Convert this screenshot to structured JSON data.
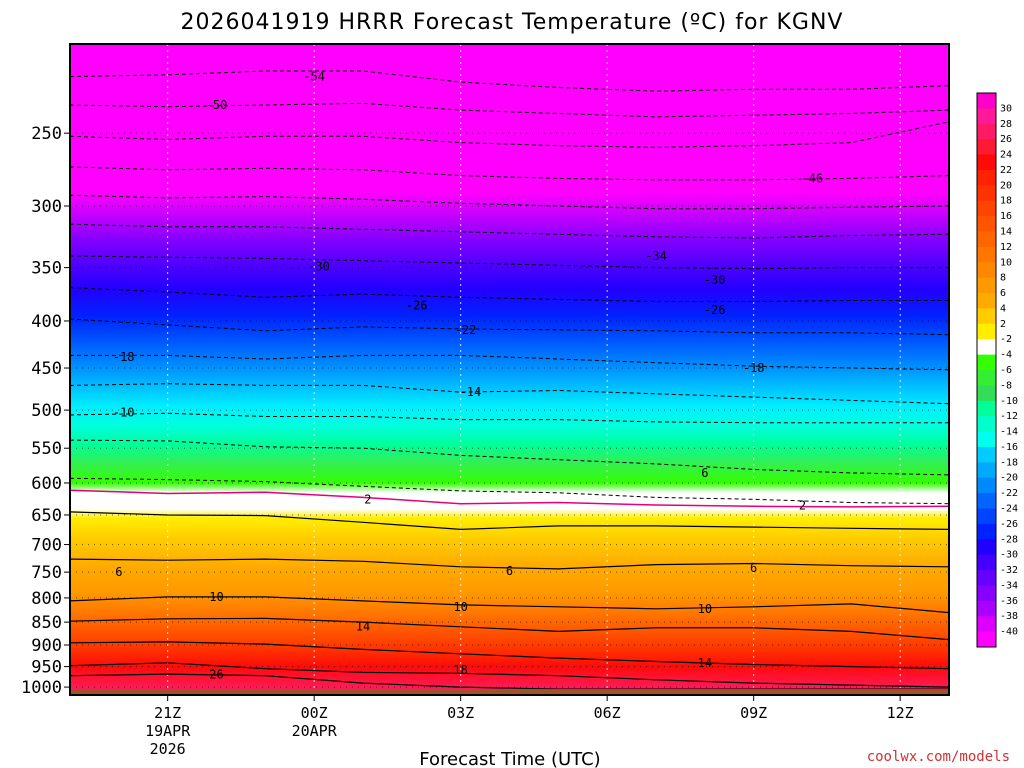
{
  "chart_data": {
    "type": "heatmap",
    "title": "2026041919 HRRR Forecast Temperature (ºC) for KGNV",
    "xlabel": "Forecast Time (UTC)",
    "credit": "coolwx.com/models",
    "x_ticks": [
      {
        "hour": 2,
        "lines": [
          "21Z",
          "19APR",
          "2026"
        ]
      },
      {
        "hour": 5,
        "lines": [
          "00Z",
          "20APR"
        ]
      },
      {
        "hour": 8,
        "lines": [
          "03Z"
        ]
      },
      {
        "hour": 11,
        "lines": [
          "06Z"
        ]
      },
      {
        "hour": 14,
        "lines": [
          "09Z"
        ]
      },
      {
        "hour": 17,
        "lines": [
          "12Z"
        ]
      }
    ],
    "xlim": [
      0,
      18
    ],
    "y_ticks": [
      250,
      300,
      350,
      400,
      450,
      500,
      550,
      600,
      650,
      700,
      750,
      800,
      850,
      900,
      950,
      1000
    ],
    "ylim_pressure_hpa": [
      200,
      1020
    ],
    "ground_pressure_hpa": 1005,
    "colorbar_labels": [
      30,
      28,
      26,
      24,
      22,
      20,
      18,
      16,
      14,
      12,
      10,
      8,
      6,
      4,
      2,
      -2,
      -4,
      -6,
      -8,
      -10,
      -12,
      -14,
      -16,
      -18,
      -20,
      -22,
      -24,
      -26,
      -28,
      -30,
      -32,
      -34,
      -36,
      -38,
      -40
    ],
    "colorbar_colors": [
      "#ff00cc",
      "#ff1a99",
      "#ff1a66",
      "#ff1a33",
      "#ff0a0a",
      "#ff2200",
      "#ff3300",
      "#ff4400",
      "#ff5500",
      "#ff6600",
      "#ff7700",
      "#ff8800",
      "#ff9900",
      "#ffaa00",
      "#ffcc00",
      "#ffee00",
      "#ffffff",
      "#33ff00",
      "#33ee33",
      "#33dd55",
      "#00ff99",
      "#00ffcc",
      "#00ffee",
      "#00ccff",
      "#00aaff",
      "#0088ff",
      "#0066ff",
      "#0044ff",
      "#0022ff",
      "#2200ff",
      "#4400ff",
      "#6600ff",
      "#8800ff",
      "#aa00ff",
      "#dd00ff",
      "#ff00ff"
    ],
    "contour_labels": [
      {
        "value": "-54",
        "hour": 5.0,
        "pressure": 217
      },
      {
        "value": "-50",
        "hour": 3.0,
        "pressure": 233
      },
      {
        "value": "-46",
        "hour": 15.2,
        "pressure": 280
      },
      {
        "value": "-34",
        "hour": 12.0,
        "pressure": 340
      },
      {
        "value": "-30",
        "hour": 5.1,
        "pressure": 349
      },
      {
        "value": "-30",
        "hour": 13.2,
        "pressure": 361
      },
      {
        "value": "-26",
        "hour": 7.1,
        "pressure": 385
      },
      {
        "value": "-26",
        "hour": 13.2,
        "pressure": 389
      },
      {
        "value": "-22",
        "hour": 8.1,
        "pressure": 409
      },
      {
        "value": "-18",
        "hour": 1.1,
        "pressure": 438
      },
      {
        "value": "-18",
        "hour": 14.0,
        "pressure": 450
      },
      {
        "value": "-14",
        "hour": 8.2,
        "pressure": 478
      },
      {
        "value": "-10",
        "hour": 1.1,
        "pressure": 503
      },
      {
        "value": "6",
        "hour": 13.0,
        "pressure": 585
      },
      {
        "value": "2",
        "hour": 6.1,
        "pressure": 625
      },
      {
        "value": "2",
        "hour": 15.0,
        "pressure": 635
      },
      {
        "value": "6",
        "hour": 1.0,
        "pressure": 750
      },
      {
        "value": "6",
        "hour": 9.0,
        "pressure": 748
      },
      {
        "value": "6",
        "hour": 14.0,
        "pressure": 742
      },
      {
        "value": "10",
        "hour": 3.0,
        "pressure": 798
      },
      {
        "value": "10",
        "hour": 8.0,
        "pressure": 818
      },
      {
        "value": "10",
        "hour": 13.0,
        "pressure": 822
      },
      {
        "value": "14",
        "hour": 6.0,
        "pressure": 859
      },
      {
        "value": "14",
        "hour": 13.0,
        "pressure": 942
      },
      {
        "value": "18",
        "hour": 8.0,
        "pressure": 958
      },
      {
        "value": "26",
        "hour": 3.0,
        "pressure": 969
      }
    ]
  }
}
